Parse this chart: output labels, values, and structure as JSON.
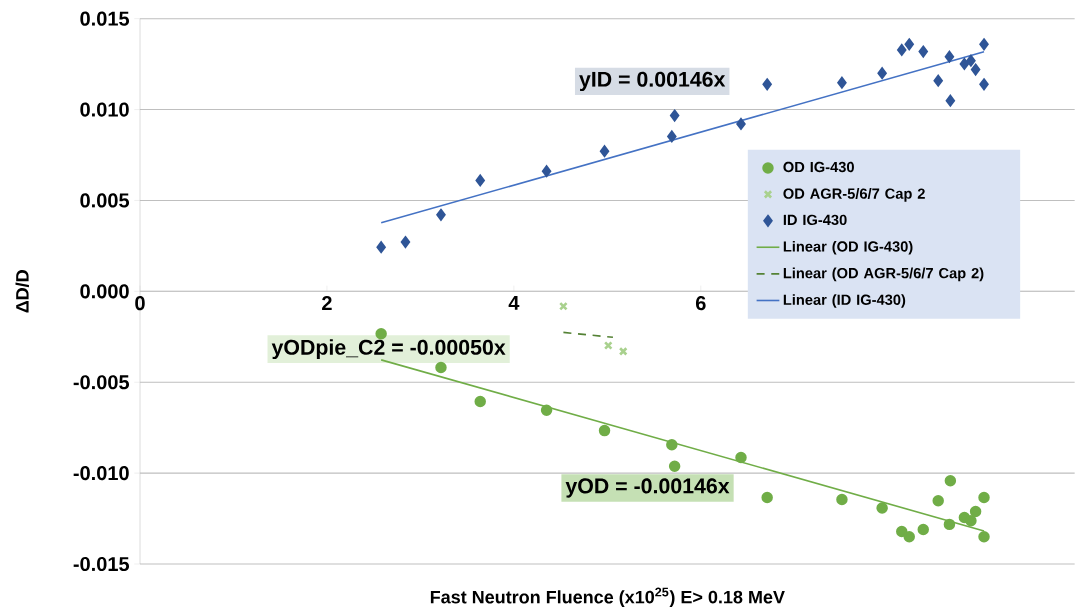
{
  "chart_data": {
    "type": "scatter",
    "xlabel": "Fast Neutron Fluence (x10$^{25}$) E> 0.18 MeV",
    "ylabel": "ΔD/D",
    "xlim": [
      0,
      10
    ],
    "xticks": [
      0,
      2,
      4,
      6
    ],
    "ylim": [
      -0.015,
      0.015
    ],
    "yticks": [
      {
        "value": -0.015,
        "label": "-0.015"
      },
      {
        "value": -0.01,
        "label": "-0.010"
      },
      {
        "value": -0.005,
        "label": "-0.005"
      },
      {
        "value": 0,
        "label": "0.000"
      },
      {
        "value": 0.005,
        "label": "0.005"
      },
      {
        "value": 0.01,
        "label": "0.010"
      },
      {
        "value": 0.015,
        "label": "0.015"
      }
    ],
    "grid": "y",
    "legend": "right",
    "series": [
      {
        "name": "OD IG-430",
        "type": "scatter",
        "marker": "circle",
        "color": "#70ad47",
        "x": [
          2.58,
          3.22,
          3.64,
          4.35,
          4.97,
          5.69,
          5.72,
          6.43,
          6.71,
          7.51,
          7.94,
          8.15,
          8.23,
          8.38,
          8.54,
          8.66,
          8.67,
          8.82,
          8.89,
          8.94,
          9.03,
          9.03
        ],
        "values": [
          -0.00233,
          -0.00419,
          -0.00606,
          -0.00654,
          -0.00766,
          -0.00844,
          -0.00962,
          -0.00914,
          -0.01134,
          -0.01145,
          -0.01192,
          -0.01321,
          -0.0135,
          -0.0131,
          -0.01152,
          -0.01282,
          -0.01042,
          -0.01244,
          -0.01262,
          -0.01211,
          -0.01134,
          -0.0135
        ]
      },
      {
        "name": "OD AGR-5/6/7 Cap 2",
        "type": "scatter",
        "marker": "cross",
        "color": "#a9d18e",
        "x": [
          4.53,
          5.01,
          5.17
        ],
        "values": [
          -0.00082,
          -0.00298,
          -0.0033
        ]
      },
      {
        "name": "ID IG-430",
        "type": "scatter",
        "marker": "diamond",
        "color": "#2f5597",
        "x": [
          2.58,
          2.84,
          3.22,
          3.64,
          4.35,
          4.97,
          5.69,
          5.72,
          6.43,
          6.71,
          7.51,
          7.94,
          8.15,
          8.23,
          8.38,
          8.54,
          8.66,
          8.67,
          8.82,
          8.89,
          8.94,
          9.03,
          9.03
        ],
        "values": [
          0.00243,
          0.00271,
          0.00421,
          0.0061,
          0.00661,
          0.00771,
          0.00852,
          0.00967,
          0.00921,
          0.01139,
          0.01148,
          0.012,
          0.01328,
          0.01359,
          0.01319,
          0.01159,
          0.01291,
          0.01049,
          0.01251,
          0.01269,
          0.0122,
          0.01359,
          0.01139
        ]
      },
      {
        "name": "Linear (OD IG-430)",
        "type": "line",
        "line_style": "solid",
        "color": "#70ad47",
        "x": [
          2.58,
          9.03
        ],
        "values": [
          -0.00377,
          -0.01318
        ]
      },
      {
        "name": "Linear (OD AGR-5/6/7 Cap 2)",
        "type": "line",
        "line_style": "dashed",
        "color": "#548235",
        "x": [
          4.53,
          5.06
        ],
        "values": [
          -0.00226,
          -0.00253
        ]
      },
      {
        "name": "Linear (ID IG-430)",
        "type": "line",
        "line_style": "solid",
        "color": "#4472c4",
        "x": [
          2.58,
          9.03
        ],
        "values": [
          0.00377,
          0.01318
        ]
      }
    ],
    "annotations": [
      "yID = 0.00146x",
      "yODpie_C2 = -0.00050x",
      "yOD = -0.00146x"
    ]
  }
}
